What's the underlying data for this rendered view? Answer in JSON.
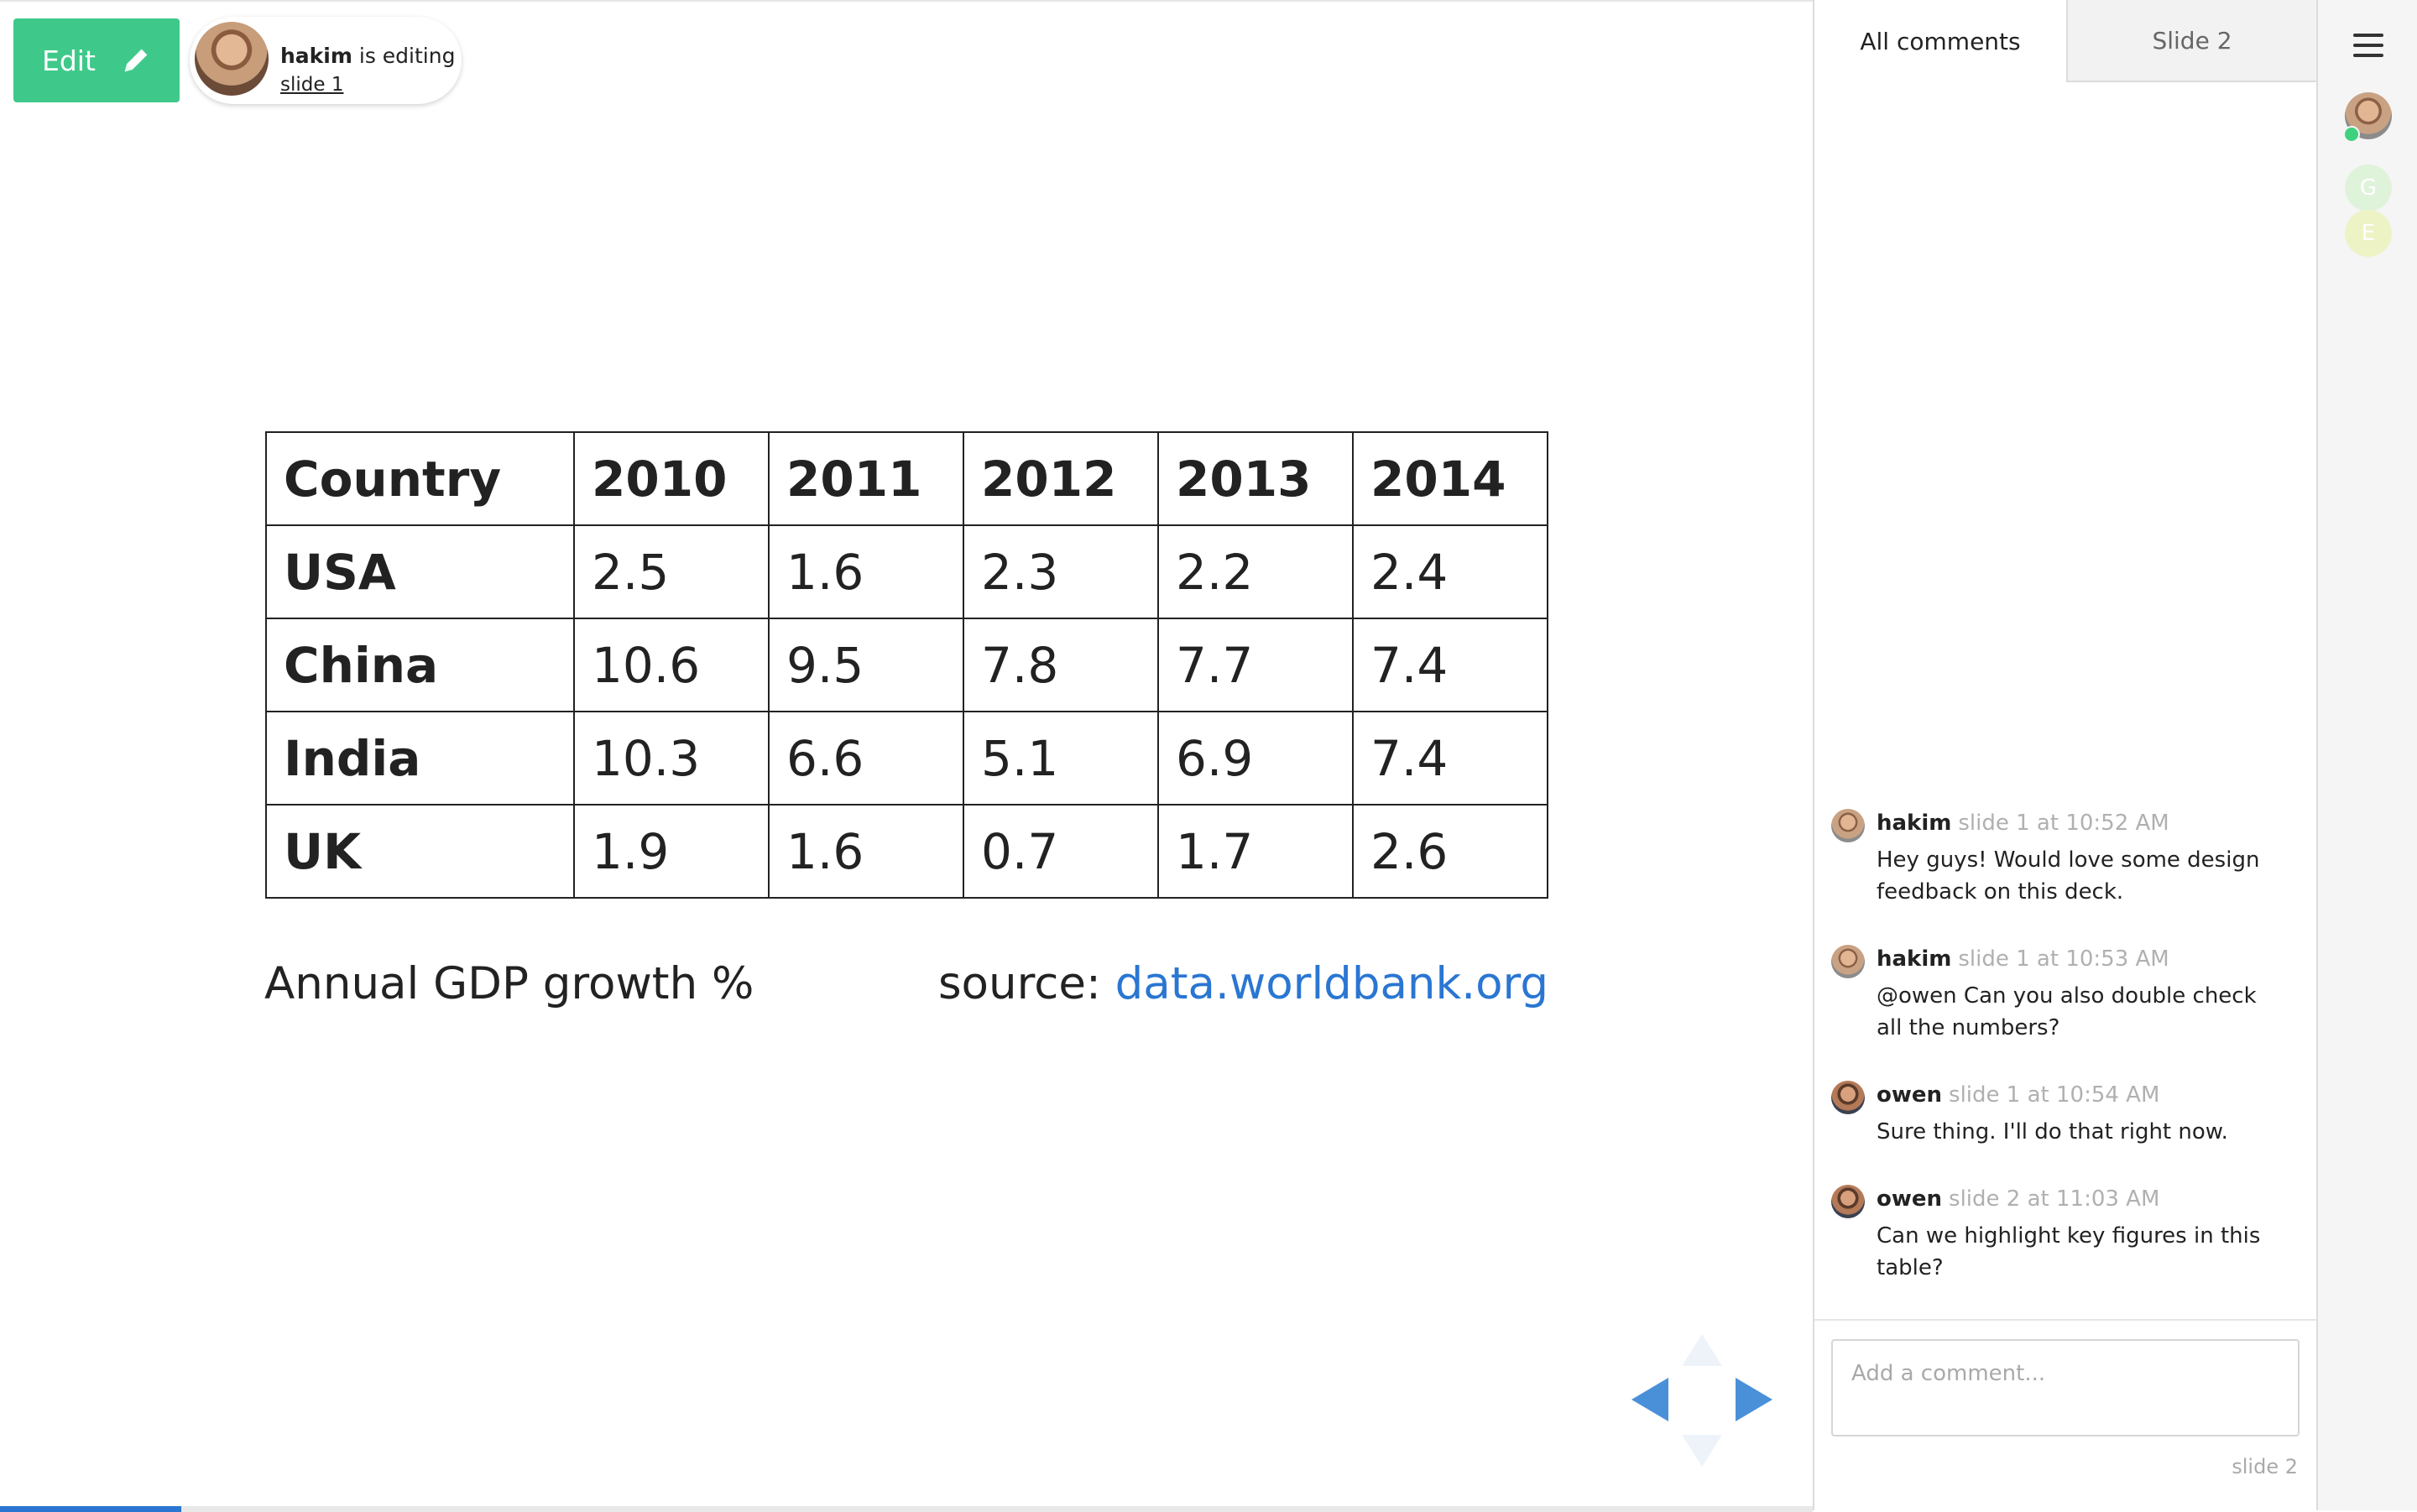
{
  "toolbar": {
    "edit_label": "Edit"
  },
  "presence": {
    "user": "hakim",
    "status": "is editing",
    "location": "slide 1"
  },
  "table": {
    "headers": [
      "Country",
      "2010",
      "2011",
      "2012",
      "2013",
      "2014"
    ],
    "rows": [
      {
        "country": "USA",
        "values": [
          "2.5",
          "1.6",
          "2.3",
          "2.2",
          "2.4"
        ]
      },
      {
        "country": "China",
        "values": [
          "10.6",
          "9.5",
          "7.8",
          "7.7",
          "7.4"
        ]
      },
      {
        "country": "India",
        "values": [
          "10.3",
          "6.6",
          "5.1",
          "6.9",
          "7.4"
        ]
      },
      {
        "country": "UK",
        "values": [
          "1.9",
          "1.6",
          "0.7",
          "1.7",
          "2.6"
        ]
      }
    ]
  },
  "slide": {
    "caption": "Annual GDP growth %",
    "source_prefix": "source:",
    "source_link": "data.worldbank.org"
  },
  "progress": {
    "fraction": 0.1
  },
  "comments_panel": {
    "tabs": [
      "All comments",
      "Slide 2"
    ],
    "comments": [
      {
        "author": "hakim",
        "when": "slide 1 at 10:52 AM",
        "body": "Hey guys! Would love some design feedback on this deck."
      },
      {
        "author": "hakim",
        "when": "slide 1 at 10:53 AM",
        "body": "@owen Can you also double check all the numbers?"
      },
      {
        "author": "owen",
        "when": "slide 1 at 10:54 AM",
        "body": "Sure thing. I'll do that right now."
      },
      {
        "author": "owen",
        "when": "slide 2 at 11:03 AM",
        "body": "Can we highlight key figures in this table?"
      }
    ],
    "input_placeholder": "Add a comment...",
    "input_slide_ref": "slide 2"
  },
  "rail": {
    "collaborators": [
      "G",
      "E"
    ]
  },
  "colors": {
    "edit": "#3ec98a",
    "link": "#2a76d2",
    "online": "#3ed17e",
    "nav": "#4a90d9"
  },
  "icons": [
    "pencil-icon",
    "menu-icon",
    "arrow-left-icon",
    "arrow-right-icon",
    "arrow-up-icon",
    "arrow-down-icon"
  ]
}
